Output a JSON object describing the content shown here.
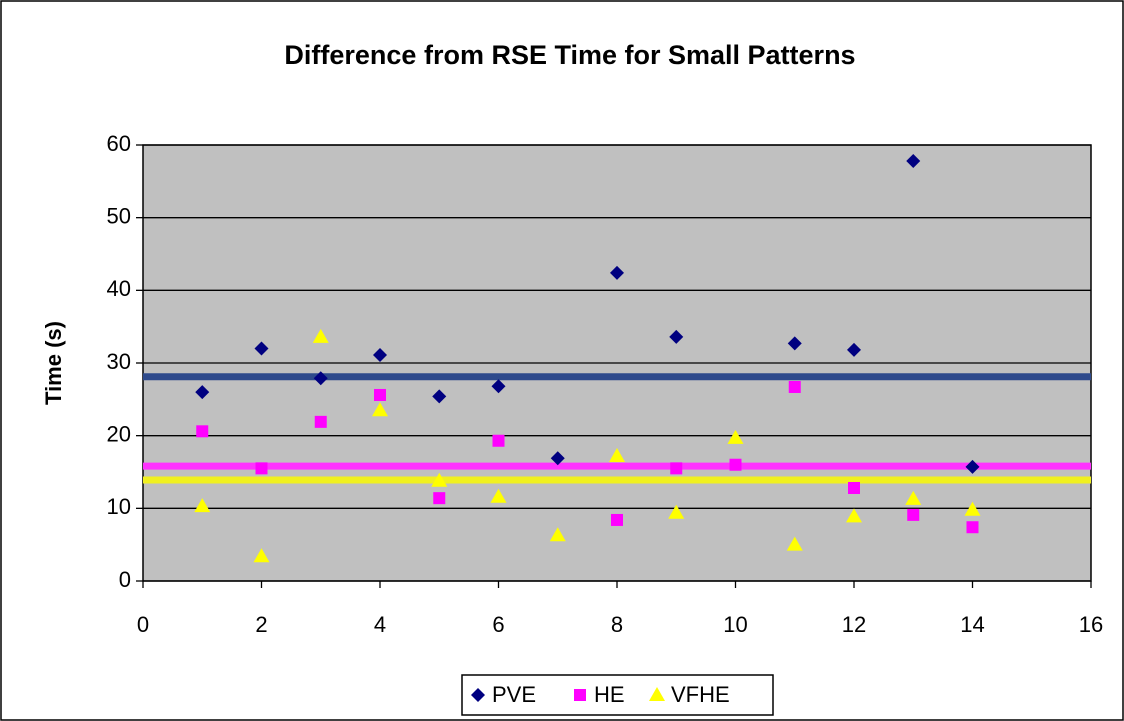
{
  "chart_data": {
    "type": "scatter",
    "title": "Difference from RSE Time for Small Patterns",
    "y_label": "Time (s)",
    "x": [
      1,
      2,
      3,
      4,
      5,
      6,
      7,
      8,
      9,
      10,
      11,
      12,
      13,
      14
    ],
    "series": [
      {
        "name": "PVE",
        "color": "#000080",
        "marker": "diamond",
        "values": [
          26.0,
          32.0,
          27.9,
          31.1,
          25.4,
          26.8,
          16.9,
          42.4,
          33.6,
          null,
          32.7,
          31.8,
          57.8,
          15.7
        ]
      },
      {
        "name": "HE",
        "color": "#ff00ff",
        "marker": "square",
        "values": [
          20.6,
          15.5,
          21.9,
          25.6,
          11.4,
          19.3,
          null,
          8.4,
          15.5,
          16.0,
          26.7,
          12.8,
          9.1,
          7.4
        ]
      },
      {
        "name": "VFHE",
        "color": "#ffff00",
        "marker": "triangle",
        "values": [
          10.3,
          3.4,
          33.6,
          23.5,
          13.8,
          11.6,
          6.3,
          17.2,
          9.4,
          19.7,
          5.0,
          8.9,
          11.3,
          9.8
        ]
      }
    ],
    "hlines": [
      {
        "value": 28.1,
        "color": "#2e4a8c"
      },
      {
        "value": 15.8,
        "color": "#ff33ff"
      },
      {
        "value": 13.9,
        "color": "#f0f020"
      }
    ],
    "xlim": [
      0,
      16
    ],
    "xticks": [
      0,
      2,
      4,
      6,
      8,
      10,
      12,
      14,
      16
    ],
    "ylim": [
      0,
      60
    ],
    "yticks": [
      0,
      10,
      20,
      30,
      40,
      50,
      60
    ],
    "grid": true,
    "plot_background": "#c0c0c0",
    "legend": "bottom"
  }
}
